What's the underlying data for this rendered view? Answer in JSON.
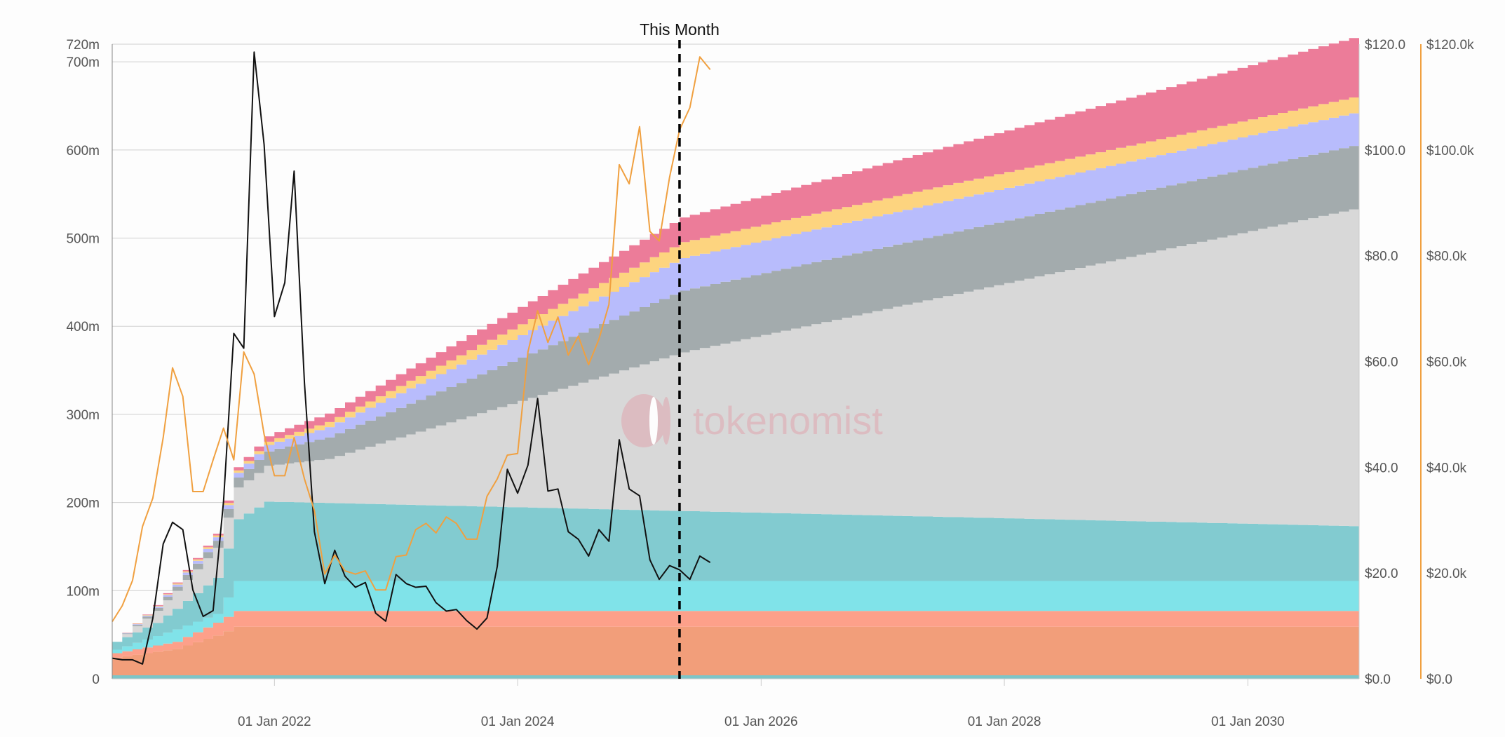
{
  "chart_data": {
    "type": "area",
    "title": "",
    "annotation": "This Month",
    "watermark": "tokenomist",
    "x_range": [
      "2020-09-01",
      "2030-12-01"
    ],
    "x_ticks": [
      {
        "date": "2022-01-01",
        "label": "01 Jan 2022"
      },
      {
        "date": "2024-01-01",
        "label": "01 Jan 2024"
      },
      {
        "date": "2026-01-01",
        "label": "01 Jan 2026"
      },
      {
        "date": "2028-01-01",
        "label": "01 Jan 2028"
      },
      {
        "date": "2030-01-01",
        "label": "01 Jan 2030"
      }
    ],
    "this_month": "2025-05-01",
    "left_axis": {
      "range": [
        0,
        720000000
      ],
      "ticks": [
        {
          "value": 0,
          "label": "0"
        },
        {
          "value": 100000000,
          "label": "100m"
        },
        {
          "value": 200000000,
          "label": "200m"
        },
        {
          "value": 300000000,
          "label": "300m"
        },
        {
          "value": 400000000,
          "label": "400m"
        },
        {
          "value": 500000000,
          "label": "500m"
        },
        {
          "value": 600000000,
          "label": "600m"
        },
        {
          "value": 700000000,
          "label": "700m"
        },
        {
          "value": 720000000,
          "label": "720m"
        }
      ]
    },
    "right_axis_1": {
      "range": [
        0,
        120
      ],
      "ticks": [
        {
          "value": 0,
          "label": "$0.0"
        },
        {
          "value": 20,
          "label": "$20.0"
        },
        {
          "value": 40,
          "label": "$40.0"
        },
        {
          "value": 60,
          "label": "$60.0"
        },
        {
          "value": 80,
          "label": "$80.0"
        },
        {
          "value": 100,
          "label": "$100.0"
        },
        {
          "value": 120,
          "label": "$120.0"
        }
      ]
    },
    "right_axis_2": {
      "range": [
        0,
        120000
      ],
      "color": "#f0a040",
      "ticks": [
        {
          "value": 0,
          "label": "$0.0"
        },
        {
          "value": 20000,
          "label": "$20.0k"
        },
        {
          "value": 40000,
          "label": "$40.0k"
        },
        {
          "value": 60000,
          "label": "$60.0k"
        },
        {
          "value": 80000,
          "label": "$80.0k"
        },
        {
          "value": 100000,
          "label": "$100.0k"
        },
        {
          "value": 120000,
          "label": "$120.0k"
        }
      ]
    },
    "stack_colors": [
      "#7dc5c8",
      "#f29e7a",
      "#fda08a",
      "#80e3e9",
      "#82cbd0",
      "#d8d8d8",
      "#a3abad",
      "#b8bcfc",
      "#fdd47f",
      "#ec7c99"
    ],
    "stack_curves": [
      {
        "color": "#7dc5c8",
        "points": [
          [
            "2020-09-01",
            4000000
          ],
          [
            "2030-12-01",
            4000000
          ]
        ]
      },
      {
        "color": "#f29e7a",
        "points": [
          [
            "2020-09-01",
            20000000
          ],
          [
            "2021-03-01",
            30000000
          ],
          [
            "2021-07-01",
            45000000
          ],
          [
            "2021-09-01",
            55000000
          ],
          [
            "2030-12-01",
            55000000
          ]
        ]
      },
      {
        "color": "#fda08a",
        "points": [
          [
            "2020-09-01",
            5000000
          ],
          [
            "2021-03-01",
            8000000
          ],
          [
            "2021-09-01",
            18000000
          ],
          [
            "2030-12-01",
            18000000
          ]
        ]
      },
      {
        "color": "#80e3e9",
        "points": [
          [
            "2020-09-01",
            4000000
          ],
          [
            "2021-03-01",
            14000000
          ],
          [
            "2021-07-01",
            10000000
          ],
          [
            "2021-09-01",
            34000000
          ],
          [
            "2030-12-01",
            34000000
          ]
        ]
      },
      {
        "color": "#82cbd0",
        "points": [
          [
            "2020-09-01",
            9000000
          ],
          [
            "2021-01-01",
            15000000
          ],
          [
            "2021-07-01",
            41000000
          ],
          [
            "2021-09-01",
            70000000
          ],
          [
            "2021-12-01",
            90000000
          ],
          [
            "2030-12-01",
            62000000
          ]
        ]
      },
      {
        "color": "#d8d8d8",
        "points": [
          [
            "2020-09-01",
            0
          ],
          [
            "2021-07-01",
            34000000
          ],
          [
            "2021-09-01",
            36000000
          ],
          [
            "2022-06-01",
            50000000
          ],
          [
            "2025-05-01",
            180000000
          ],
          [
            "2030-12-01",
            362000000
          ]
        ]
      },
      {
        "color": "#a3abad",
        "points": [
          [
            "2020-09-01",
            0
          ],
          [
            "2021-07-01",
            8000000
          ],
          [
            "2022-01-01",
            18000000
          ],
          [
            "2025-05-01",
            70000000
          ],
          [
            "2030-12-01",
            72000000
          ]
        ]
      },
      {
        "color": "#b8bcfc",
        "points": [
          [
            "2020-09-01",
            0
          ],
          [
            "2021-07-01",
            4000000
          ],
          [
            "2022-01-01",
            8000000
          ],
          [
            "2025-05-01",
            37000000
          ],
          [
            "2030-12-01",
            37000000
          ]
        ]
      },
      {
        "color": "#fdd47f",
        "points": [
          [
            "2020-09-01",
            0
          ],
          [
            "2021-07-01",
            2000000
          ],
          [
            "2022-01-01",
            4000000
          ],
          [
            "2025-05-01",
            18000000
          ],
          [
            "2030-12-01",
            18000000
          ]
        ]
      },
      {
        "color": "#ec7c99",
        "points": [
          [
            "2020-09-01",
            0
          ],
          [
            "2021-07-01",
            2000000
          ],
          [
            "2022-01-01",
            7000000
          ],
          [
            "2025-05-01",
            28000000
          ],
          [
            "2030-12-01",
            68000000
          ]
        ]
      }
    ],
    "series": [
      {
        "name": "",
        "axis": "right_axis_1",
        "color": "#111111",
        "points": [
          [
            "2020-09-01",
            3.9
          ],
          [
            "2020-10-01",
            3.6
          ],
          [
            "2020-11-01",
            3.6
          ],
          [
            "2020-12-01",
            2.8
          ],
          [
            "2021-01-01",
            11.5
          ],
          [
            "2021-02-01",
            25.5
          ],
          [
            "2021-03-01",
            29.6
          ],
          [
            "2021-04-01",
            28.2
          ],
          [
            "2021-05-01",
            16.8
          ],
          [
            "2021-06-01",
            11.8
          ],
          [
            "2021-07-01",
            12.9
          ],
          [
            "2021-08-01",
            33.5
          ],
          [
            "2021-09-01",
            65.3
          ],
          [
            "2021-10-01",
            62.5
          ],
          [
            "2021-11-01",
            118.5
          ],
          [
            "2021-12-01",
            101.0
          ],
          [
            "2022-01-01",
            68.5
          ],
          [
            "2022-02-01",
            74.9
          ],
          [
            "2022-03-01",
            96.0
          ],
          [
            "2022-04-01",
            56.0
          ],
          [
            "2022-05-01",
            27.8
          ],
          [
            "2022-06-01",
            18.0
          ],
          [
            "2022-07-01",
            24.3
          ],
          [
            "2022-08-01",
            19.4
          ],
          [
            "2022-09-01",
            17.3
          ],
          [
            "2022-10-01",
            18.2
          ],
          [
            "2022-11-01",
            12.4
          ],
          [
            "2022-12-01",
            10.9
          ],
          [
            "2023-01-01",
            19.7
          ],
          [
            "2023-02-01",
            18.0
          ],
          [
            "2023-03-01",
            17.3
          ],
          [
            "2023-04-01",
            17.5
          ],
          [
            "2023-05-01",
            14.4
          ],
          [
            "2023-06-01",
            12.8
          ],
          [
            "2023-07-01",
            13.1
          ],
          [
            "2023-08-01",
            11.0
          ],
          [
            "2023-09-01",
            9.4
          ],
          [
            "2023-10-01",
            11.5
          ],
          [
            "2023-11-01",
            21.3
          ],
          [
            "2023-12-01",
            39.6
          ],
          [
            "2024-01-01",
            35.1
          ],
          [
            "2024-02-01",
            40.4
          ],
          [
            "2024-03-01",
            53.0
          ],
          [
            "2024-04-01",
            35.5
          ],
          [
            "2024-05-01",
            35.9
          ],
          [
            "2024-06-01",
            27.8
          ],
          [
            "2024-07-01",
            26.4
          ],
          [
            "2024-08-01",
            23.2
          ],
          [
            "2024-09-01",
            28.2
          ],
          [
            "2024-10-01",
            26.0
          ],
          [
            "2024-11-01",
            45.2
          ],
          [
            "2024-12-01",
            35.9
          ],
          [
            "2025-01-01",
            34.6
          ],
          [
            "2025-02-01",
            22.5
          ],
          [
            "2025-03-01",
            18.8
          ],
          [
            "2025-04-01",
            21.4
          ],
          [
            "2025-05-01",
            20.6
          ],
          [
            "2025-06-01",
            18.8
          ],
          [
            "2025-07-01",
            23.2
          ],
          [
            "2025-08-01",
            22.0
          ]
        ]
      },
      {
        "name": "",
        "axis": "right_axis_2",
        "color": "#f0a040",
        "points": [
          [
            "2020-09-01",
            10800
          ],
          [
            "2020-10-01",
            13800
          ],
          [
            "2020-11-01",
            18600
          ],
          [
            "2020-12-01",
            28800
          ],
          [
            "2021-01-01",
            34200
          ],
          [
            "2021-02-01",
            45600
          ],
          [
            "2021-03-01",
            58800
          ],
          [
            "2021-04-01",
            53400
          ],
          [
            "2021-05-01",
            35400
          ],
          [
            "2021-06-01",
            35400
          ],
          [
            "2021-07-01",
            41400
          ],
          [
            "2021-08-01",
            47400
          ],
          [
            "2021-09-01",
            41400
          ],
          [
            "2021-10-01",
            61800
          ],
          [
            "2021-11-01",
            57600
          ],
          [
            "2021-12-01",
            46200
          ],
          [
            "2022-01-01",
            38400
          ],
          [
            "2022-02-01",
            38400
          ],
          [
            "2022-03-01",
            45600
          ],
          [
            "2022-04-01",
            37800
          ],
          [
            "2022-05-01",
            31800
          ],
          [
            "2022-06-01",
            19800
          ],
          [
            "2022-07-01",
            23400
          ],
          [
            "2022-08-01",
            20400
          ],
          [
            "2022-09-01",
            19800
          ],
          [
            "2022-10-01",
            20400
          ],
          [
            "2022-11-01",
            16800
          ],
          [
            "2022-12-01",
            16800
          ],
          [
            "2023-01-01",
            23100
          ],
          [
            "2023-02-01",
            23400
          ],
          [
            "2023-03-01",
            28200
          ],
          [
            "2023-04-01",
            29400
          ],
          [
            "2023-05-01",
            27600
          ],
          [
            "2023-06-01",
            30600
          ],
          [
            "2023-07-01",
            29400
          ],
          [
            "2023-08-01",
            26400
          ],
          [
            "2023-09-01",
            26400
          ],
          [
            "2023-10-01",
            34500
          ],
          [
            "2023-11-01",
            37800
          ],
          [
            "2023-12-01",
            42300
          ],
          [
            "2024-01-01",
            42600
          ],
          [
            "2024-02-01",
            61800
          ],
          [
            "2024-03-01",
            69600
          ],
          [
            "2024-04-01",
            63600
          ],
          [
            "2024-05-01",
            68400
          ],
          [
            "2024-06-01",
            61200
          ],
          [
            "2024-07-01",
            64800
          ],
          [
            "2024-08-01",
            59400
          ],
          [
            "2024-09-01",
            64200
          ],
          [
            "2024-10-01",
            70800
          ],
          [
            "2024-11-01",
            97200
          ],
          [
            "2024-12-01",
            93600
          ],
          [
            "2025-01-01",
            104400
          ],
          [
            "2025-02-01",
            84600
          ],
          [
            "2025-03-01",
            82800
          ],
          [
            "2025-04-01",
            94800
          ],
          [
            "2025-05-01",
            103800
          ],
          [
            "2025-06-01",
            108000
          ],
          [
            "2025-07-01",
            117600
          ],
          [
            "2025-08-01",
            115200
          ]
        ]
      }
    ],
    "grid": true,
    "legend": "none"
  }
}
